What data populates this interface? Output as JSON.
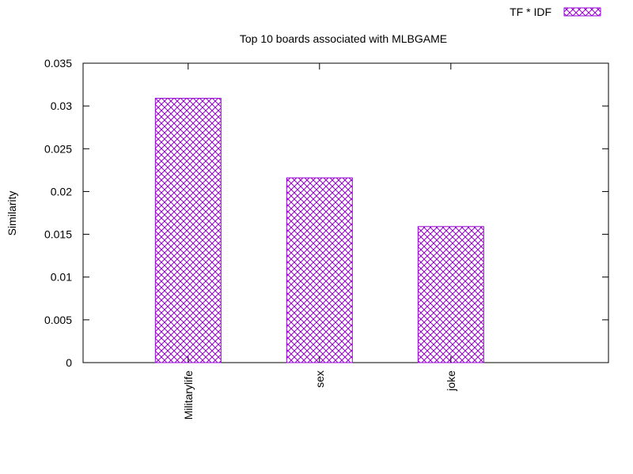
{
  "chart_data": {
    "type": "bar",
    "title": "Top 10 boards associated with MLBGAME",
    "xlabel": "",
    "ylabel": "Similarity",
    "categories": [
      "Militarylife",
      "sex",
      "joke"
    ],
    "series": [
      {
        "name": "TF * IDF",
        "values": [
          0.0309,
          0.0216,
          0.0159
        ]
      }
    ],
    "ylim": [
      0,
      0.035
    ],
    "yticks": [
      "0",
      "0.005",
      "0.01",
      "0.015",
      "0.02",
      "0.025",
      "0.03",
      "0.035"
    ],
    "xlim": [
      -0.8,
      3.2
    ],
    "grid": false,
    "legend_position": "top-right",
    "bar_pattern": "crosshatch",
    "colors": {
      "bar": "#9400d3",
      "axis": "#000000",
      "background": "#ffffff"
    }
  }
}
